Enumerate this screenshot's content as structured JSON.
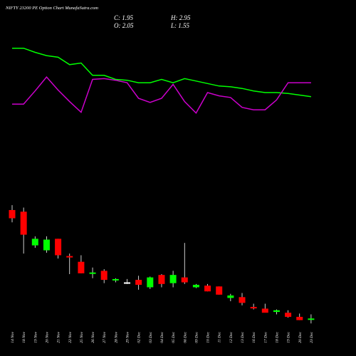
{
  "header": {
    "title": "NIFTY 23200 PE Option Chart MunafaSutra.com",
    "close": "C: 1.95",
    "open": "O: 2.05",
    "high": "H: 2.95",
    "low": "L: 1.55"
  },
  "colors": {
    "background": "#000000",
    "up": "#00ff00",
    "down": "#ff0000",
    "doji": "#ffffff",
    "wick": "#ffffff",
    "ma_green": "#00ff00",
    "ma_magenta": "#cc00cc"
  },
  "chart_data": {
    "type": "candlestick",
    "categories": [
      "14 Nov",
      "18 Nov",
      "19 Nov",
      "20 Nov",
      "21 Nov",
      "22 Nov",
      "25 Nov",
      "26 Nov",
      "27 Nov",
      "28 Nov",
      "29 Nov",
      "02 Dec",
      "03 Dec",
      "04 Dec",
      "05 Dec",
      "06 Dec",
      "09 Dec",
      "10 Dec",
      "11 Dec",
      "12 Dec",
      "13 Dec",
      "16 Dec",
      "17 Dec",
      "18 Dec",
      "19 Dec",
      "20 Dec",
      "23 Dec"
    ],
    "candles": [
      {
        "o": 96,
        "h": 102,
        "l": 81,
        "c": 86
      },
      {
        "o": 94,
        "h": 99,
        "l": 43,
        "c": 66
      },
      {
        "o": 53,
        "h": 64,
        "l": 50,
        "c": 61
      },
      {
        "o": 47,
        "h": 64,
        "l": 44,
        "c": 60
      },
      {
        "o": 61,
        "h": 61,
        "l": 37,
        "c": 41
      },
      {
        "o": 40,
        "h": 43,
        "l": 18,
        "c": 39
      },
      {
        "o": 33,
        "h": 41,
        "l": 19,
        "c": 19
      },
      {
        "o": 19,
        "h": 26,
        "l": 13,
        "c": 20
      },
      {
        "o": 22,
        "h": 24,
        "l": 7,
        "c": 11
      },
      {
        "o": 11,
        "h": 13,
        "l": 8,
        "c": 12
      },
      {
        "o": 8,
        "h": 12,
        "l": 6,
        "c": 8
      },
      {
        "o": 11,
        "h": 16,
        "l": -1,
        "c": 5
      },
      {
        "o": 2,
        "h": 15,
        "l": 0,
        "c": 14
      },
      {
        "o": 17,
        "h": 18,
        "l": 2,
        "c": 6
      },
      {
        "o": 7,
        "h": 22,
        "l": 2,
        "c": 17
      },
      {
        "o": 14,
        "h": 56,
        "l": 6,
        "c": 8
      },
      {
        "o": 2,
        "h": 6,
        "l": 1,
        "c": 5
      },
      {
        "o": 4,
        "h": 6,
        "l": -3,
        "c": -3
      },
      {
        "o": 3,
        "h": 3,
        "l": -7,
        "c": -7
      },
      {
        "o": -11,
        "h": -6,
        "l": -15,
        "c": -8
      },
      {
        "o": -10,
        "h": -5,
        "l": -20,
        "c": -17
      },
      {
        "o": -22,
        "h": -18,
        "l": -25,
        "c": -23
      },
      {
        "o": -24,
        "h": -18,
        "l": -28,
        "c": -29
      },
      {
        "o": -28,
        "h": -25,
        "l": -31,
        "c": -26
      },
      {
        "o": -29,
        "h": -26,
        "l": -35,
        "c": -34
      },
      {
        "o": -34,
        "h": -30,
        "l": -38,
        "c": -38
      },
      {
        "o": -37,
        "h": -31,
        "l": -42,
        "c": -36
      }
    ],
    "series": [
      {
        "values": [
          293,
          293,
          288,
          284,
          282,
          273,
          275,
          260,
          260,
          255,
          254,
          251,
          251,
          255,
          251,
          256,
          253,
          250,
          247,
          246,
          244,
          241,
          239,
          239,
          238,
          236,
          234
        ]
      },
      {
        "values": [
          225,
          225,
          241,
          258,
          242,
          228,
          215,
          255,
          256,
          254,
          251,
          232,
          227,
          232,
          249,
          228,
          214,
          239,
          235,
          233,
          221,
          218,
          218,
          230,
          251,
          251,
          251
        ]
      }
    ],
    "ylim": [
      -60,
      330
    ]
  }
}
